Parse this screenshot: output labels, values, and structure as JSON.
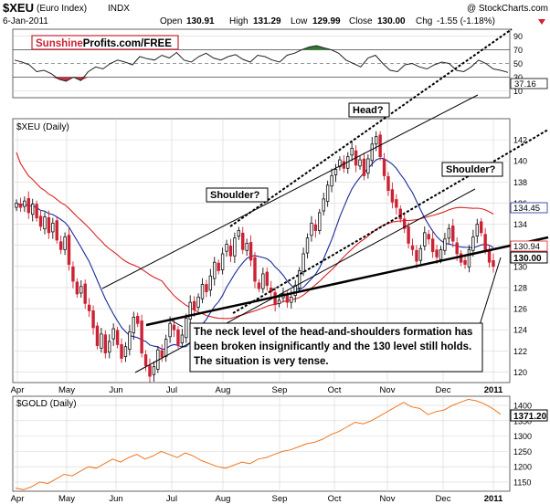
{
  "header": {
    "symbol": "$XEU",
    "name": "(Euro Index)",
    "exchange": "INDX",
    "copyright": "@ StockCharts.com",
    "date": "6-Jan-2011",
    "open_label": "Open",
    "open": "130.91",
    "high_label": "High",
    "high": "131.29",
    "low_label": "Low",
    "low": "129.99",
    "close_label": "Close",
    "close": "130.00",
    "chg_label": "Chg",
    "chg": "-1.55 (-1.18%)"
  },
  "logo": {
    "part1": "Sunshine",
    "part2": "Profits.com/FREE"
  },
  "colors": {
    "up": "#111111",
    "down": "#cc2233",
    "ma_red": "#dd2222",
    "ma_blue": "#1a2a9a",
    "gold": "#ee7722",
    "rsi_fill_green": "#2d7d2d",
    "rsi_fill_red": "#bb3344"
  },
  "chart_data": [
    {
      "type": "line",
      "panel": "rsi",
      "y_ticks": [
        "90",
        "70",
        "50",
        "30",
        "10"
      ],
      "ylim": [
        0,
        100
      ],
      "current_value": "37.16",
      "values": [
        55,
        52,
        48,
        38,
        40,
        35,
        27,
        24,
        30,
        25,
        38,
        45,
        42,
        50,
        55,
        52,
        48,
        60,
        57,
        55,
        62,
        58,
        66,
        55,
        52,
        60,
        65,
        58,
        55,
        60,
        63,
        56,
        52,
        62,
        60,
        55,
        52,
        62,
        65,
        70,
        74,
        76,
        73,
        70,
        65,
        55,
        50,
        45,
        58,
        62,
        50,
        40,
        38,
        48,
        50,
        45,
        42,
        48,
        52,
        50,
        40,
        38,
        45,
        55,
        50,
        42,
        40,
        37
      ]
    },
    {
      "type": "candlestick",
      "panel": "price",
      "label": "$XEU (Daily)",
      "x_ticks": [
        "Apr",
        "May",
        "Jun",
        "Jul",
        "Aug",
        "Sep",
        "Oct",
        "Nov",
        "Dec",
        "2011"
      ],
      "y_ticks": [
        "142",
        "140",
        "138",
        "136",
        "134",
        "132",
        "130",
        "128",
        "126",
        "124",
        "122",
        "120"
      ],
      "ylim": [
        119,
        144
      ],
      "ma_labels": [
        "134.45",
        "130.94"
      ],
      "last_price": "130.00",
      "closes": [
        136,
        135.6,
        136.2,
        135.1,
        135.9,
        134.6,
        133.8,
        134.7,
        133.2,
        134.1,
        132.5,
        131.6,
        132.8,
        130.2,
        128.6,
        127.4,
        128.1,
        126.5,
        125.8,
        124.2,
        122.5,
        123.6,
        121.8,
        122.9,
        124.1,
        122.6,
        121.3,
        122.4,
        123.8,
        125.2,
        124.6,
        121.8,
        120.6,
        119.6,
        120.5,
        122.1,
        121.4,
        123.1,
        124.6,
        124.0,
        122.6,
        123.5,
        125.1,
        126.6,
        125.9,
        127.1,
        128.3,
        127.6,
        129.1,
        130.4,
        129.6,
        131.2,
        132.1,
        131.0,
        132.7,
        133.4,
        131.6,
        132.2,
        130.6,
        128.6,
        127.9,
        129.3,
        128.2,
        127.6,
        126.4,
        126.8,
        127.4,
        126.6,
        127.1,
        128.2,
        129.6,
        131.2,
        132.7,
        134.1,
        133.4,
        135.1,
        136.4,
        137.7,
        138.6,
        139.2,
        140.1,
        139.3,
        140.4,
        141.2,
        139.6,
        140.1,
        138.6,
        140.2,
        141.6,
        142.3,
        140.4,
        138.6,
        137.2,
        136.1,
        135.6,
        134.5,
        133.6,
        132.2,
        131.6,
        130.5,
        131.7,
        133.2,
        132.6,
        131.4,
        130.9,
        131.6,
        132.6,
        133.6,
        132.4,
        131.2,
        130.4,
        130.2,
        131.6,
        132.8,
        134.0,
        133.2,
        131.6,
        130.4,
        130.0
      ]
    },
    {
      "type": "line",
      "panel": "gold",
      "label": "$GOLD (Daily)",
      "x_ticks": [
        "Apr",
        "May",
        "Jun",
        "Jul",
        "Aug",
        "Sep",
        "Oct",
        "Nov",
        "Dec",
        "2011"
      ],
      "y_ticks": [
        "1400",
        "1350",
        "1300",
        "1250",
        "1200",
        "1150"
      ],
      "ylim": [
        1120,
        1430
      ],
      "last_value": "1371.20",
      "values": [
        1130,
        1125,
        1135,
        1150,
        1145,
        1160,
        1175,
        1170,
        1185,
        1200,
        1195,
        1210,
        1225,
        1215,
        1230,
        1240,
        1225,
        1235,
        1250,
        1240,
        1230,
        1245,
        1235,
        1220,
        1210,
        1200,
        1195,
        1205,
        1215,
        1210,
        1225,
        1230,
        1240,
        1250,
        1255,
        1265,
        1275,
        1280,
        1290,
        1305,
        1315,
        1330,
        1345,
        1340,
        1350,
        1365,
        1380,
        1395,
        1410,
        1395,
        1390,
        1370,
        1380,
        1385,
        1400,
        1410,
        1420,
        1415,
        1405,
        1390,
        1371
      ]
    }
  ],
  "annotations": {
    "head": "Head?",
    "shoulder_left": "Shoulder?",
    "shoulder_right": "Shoulder?",
    "note": "The neck level of the head-and-shoulders formation has been broken insignificantly and the 130 level still holds. The situation is very tense."
  }
}
